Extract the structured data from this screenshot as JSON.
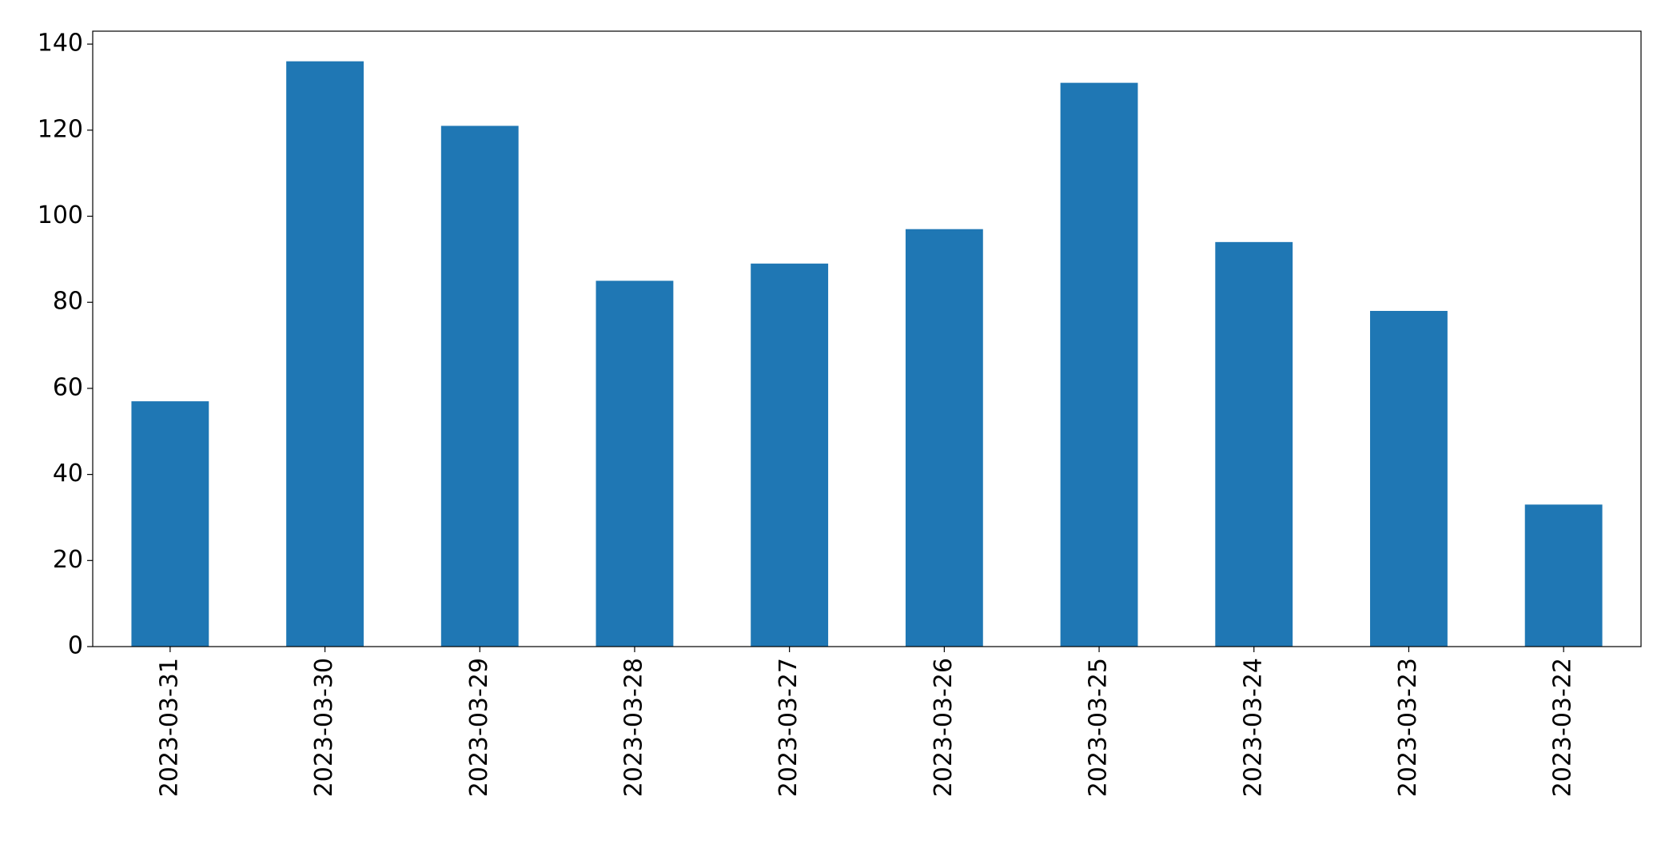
{
  "chart_data": {
    "type": "bar",
    "categories": [
      "2023-03-31",
      "2023-03-30",
      "2023-03-29",
      "2023-03-28",
      "2023-03-27",
      "2023-03-26",
      "2023-03-25",
      "2023-03-24",
      "2023-03-23",
      "2023-03-22"
    ],
    "values": [
      57,
      136,
      121,
      85,
      89,
      97,
      131,
      94,
      78,
      33
    ],
    "color": "#1f77b4",
    "ylim": [
      0,
      143
    ],
    "yticks": [
      0,
      20,
      40,
      60,
      80,
      100,
      120,
      140
    ],
    "grid": false
  }
}
